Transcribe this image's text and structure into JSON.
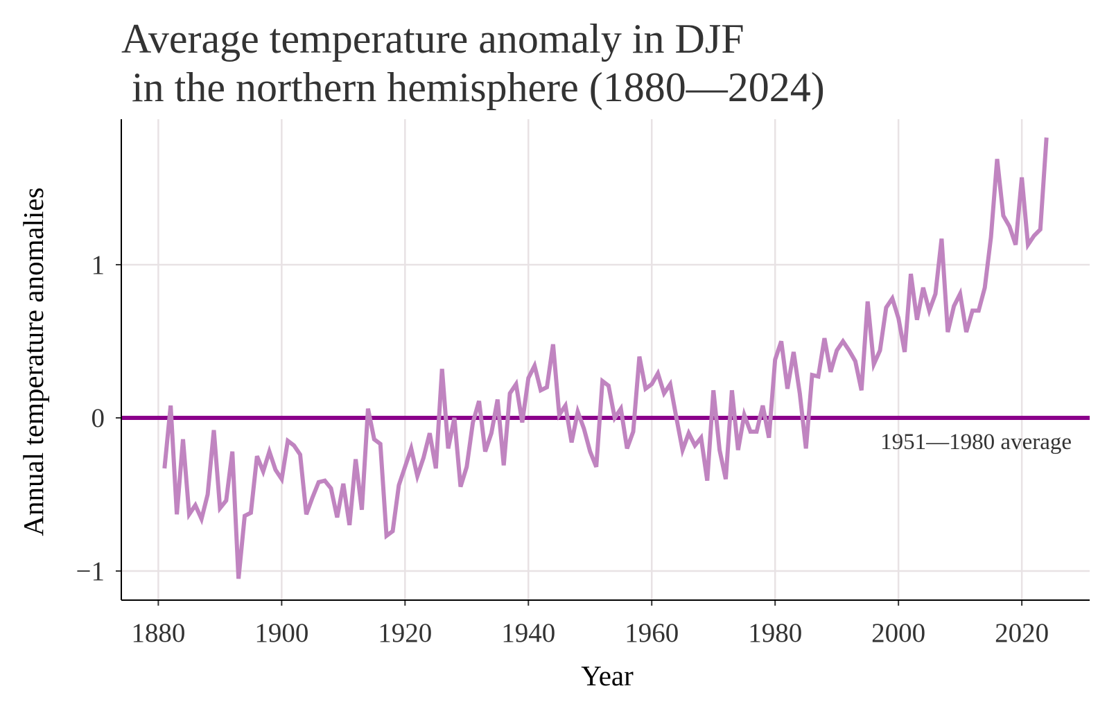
{
  "chart_data": {
    "type": "line",
    "title_lines": [
      "Average temperature anomaly in DJF",
      " in the northern hemisphere (1880—2024)"
    ],
    "xlabel": "Year",
    "ylabel": "Annual temperature anomalies",
    "xlim": [
      1874,
      2031
    ],
    "ylim": [
      -1.19,
      1.95
    ],
    "xticks": [
      1880,
      1900,
      1920,
      1940,
      1960,
      1980,
      2000,
      2020
    ],
    "yticks": [
      -1,
      0,
      1
    ],
    "ytick_labels": [
      "−1",
      "0",
      "1"
    ],
    "grid": true,
    "colors": {
      "series": "#c084c0",
      "reference": "#8b008b",
      "grid": "#e8e2e4"
    },
    "reference_line": {
      "y": 0,
      "label": "1951—1980 average"
    },
    "x": [
      1881,
      1882,
      1883,
      1884,
      1885,
      1886,
      1887,
      1888,
      1889,
      1890,
      1891,
      1892,
      1893,
      1894,
      1895,
      1896,
      1897,
      1898,
      1899,
      1900,
      1901,
      1902,
      1903,
      1904,
      1905,
      1906,
      1907,
      1908,
      1909,
      1910,
      1911,
      1912,
      1913,
      1914,
      1915,
      1916,
      1917,
      1918,
      1919,
      1920,
      1921,
      1922,
      1923,
      1924,
      1925,
      1926,
      1927,
      1928,
      1929,
      1930,
      1931,
      1932,
      1933,
      1934,
      1935,
      1936,
      1937,
      1938,
      1939,
      1940,
      1941,
      1942,
      1943,
      1944,
      1945,
      1946,
      1947,
      1948,
      1949,
      1950,
      1951,
      1952,
      1953,
      1954,
      1955,
      1956,
      1957,
      1958,
      1959,
      1960,
      1961,
      1962,
      1963,
      1964,
      1965,
      1966,
      1967,
      1968,
      1969,
      1970,
      1971,
      1972,
      1973,
      1974,
      1975,
      1976,
      1977,
      1978,
      1979,
      1980,
      1981,
      1982,
      1983,
      1984,
      1985,
      1986,
      1987,
      1988,
      1989,
      1990,
      1991,
      1992,
      1993,
      1994,
      1995,
      1996,
      1997,
      1998,
      1999,
      2000,
      2001,
      2002,
      2003,
      2004,
      2005,
      2006,
      2007,
      2008,
      2009,
      2010,
      2011,
      2012,
      2013,
      2014,
      2015,
      2016,
      2017,
      2018,
      2019,
      2020,
      2021,
      2022,
      2023,
      2024
    ],
    "series": [
      {
        "values": [
          -0.33,
          0.08,
          -0.63,
          -0.14,
          -0.63,
          -0.57,
          -0.66,
          -0.5,
          -0.08,
          -0.59,
          -0.54,
          -0.22,
          -1.05,
          -0.64,
          -0.62,
          -0.25,
          -0.35,
          -0.22,
          -0.34,
          -0.4,
          -0.15,
          -0.18,
          -0.24,
          -0.63,
          -0.52,
          -0.42,
          -0.41,
          -0.46,
          -0.65,
          -0.43,
          -0.7,
          -0.27,
          -0.6,
          0.06,
          -0.14,
          -0.17,
          -0.77,
          -0.74,
          -0.44,
          -0.32,
          -0.2,
          -0.38,
          -0.26,
          -0.1,
          -0.33,
          0.32,
          -0.2,
          0.0,
          -0.45,
          -0.32,
          -0.03,
          0.11,
          -0.22,
          -0.1,
          0.12,
          -0.31,
          0.16,
          0.22,
          -0.03,
          0.26,
          0.34,
          0.18,
          0.2,
          0.48,
          0.02,
          0.08,
          -0.16,
          0.04,
          -0.07,
          -0.22,
          -0.32,
          0.24,
          0.21,
          0.0,
          0.06,
          -0.2,
          -0.09,
          0.4,
          0.19,
          0.22,
          0.29,
          0.16,
          0.22,
          0.0,
          -0.21,
          -0.1,
          -0.18,
          -0.13,
          -0.41,
          0.18,
          -0.21,
          -0.4,
          0.18,
          -0.21,
          0.02,
          -0.09,
          -0.09,
          0.08,
          -0.13,
          0.38,
          0.5,
          0.19,
          0.43,
          0.16,
          -0.2,
          0.28,
          0.27,
          0.52,
          0.3,
          0.44,
          0.5,
          0.44,
          0.37,
          0.18,
          0.76,
          0.35,
          0.44,
          0.72,
          0.78,
          0.65,
          0.43,
          0.94,
          0.64,
          0.85,
          0.7,
          0.81,
          1.17,
          0.56,
          0.73,
          0.81,
          0.56,
          0.7,
          0.7,
          0.85,
          1.18,
          1.69,
          1.32,
          1.25,
          1.13,
          1.57,
          1.13,
          1.19,
          1.23,
          1.83
        ]
      }
    ]
  }
}
